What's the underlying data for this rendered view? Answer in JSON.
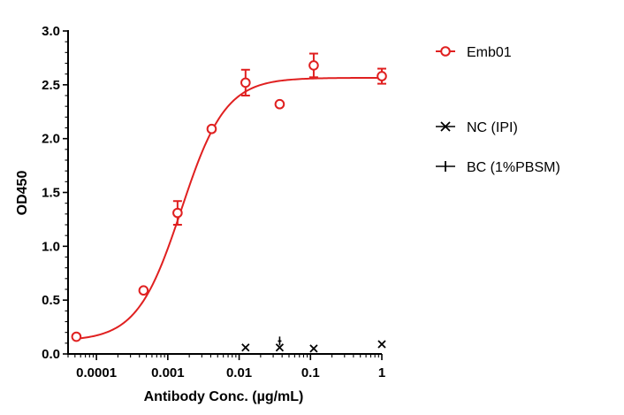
{
  "chart_data": {
    "type": "scatter",
    "xlabel": "Antibody Conc. (µg/mL)",
    "ylabel": "OD450",
    "x_scale": "log",
    "xlim": [
      4e-05,
      1.0
    ],
    "ylim": [
      0,
      3.0
    ],
    "x_ticks": [
      0.0001,
      0.001,
      0.01,
      0.1,
      1
    ],
    "x_tick_labels": [
      "0.0001",
      "0.001",
      "0.01",
      "0.1",
      "1"
    ],
    "y_ticks": [
      0,
      0.5,
      1.0,
      1.5,
      2.0,
      2.5,
      3.0
    ],
    "y_tick_labels": [
      "0.0",
      "0.5",
      "1.0",
      "1.5",
      "2.0",
      "2.5",
      "3.0"
    ],
    "legend_position": "right",
    "series": [
      {
        "name": "Emb01",
        "color": "#e02020",
        "marker": "open-circle",
        "x": [
          5.23e-05,
          0.000457,
          0.00137,
          0.00412,
          0.0123,
          0.037,
          0.111,
          1.0
        ],
        "y": [
          0.16,
          0.59,
          1.31,
          2.09,
          2.52,
          2.32,
          2.68,
          2.58
        ],
        "error": [
          0.01,
          0.01,
          0.11,
          0.02,
          0.12,
          0.0,
          0.11,
          0.07
        ],
        "fit": {
          "type": "4PL",
          "bottom": 0.12,
          "top": 2.565,
          "ec50": 0.00155,
          "hill": 1.4
        }
      },
      {
        "name": "NC (IPI)",
        "color": "#000000",
        "marker": "x",
        "x": [
          0.0123,
          0.037,
          0.111,
          1.0
        ],
        "y": [
          0.06,
          0.06,
          0.05,
          0.09
        ]
      },
      {
        "name": "BC (1%PBSM)",
        "color": "#000000",
        "marker": "plus",
        "x": [
          0.037
        ],
        "y": [
          0.12
        ]
      }
    ]
  }
}
